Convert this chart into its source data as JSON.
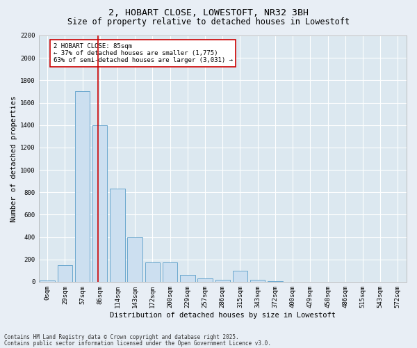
{
  "title_line1": "2, HOBART CLOSE, LOWESTOFT, NR32 3BH",
  "title_line2": "Size of property relative to detached houses in Lowestoft",
  "xlabel": "Distribution of detached houses by size in Lowestoft",
  "ylabel": "Number of detached properties",
  "bar_color": "#ccdff0",
  "bar_edge_color": "#5b9ec9",
  "categories": [
    "0sqm",
    "29sqm",
    "57sqm",
    "86sqm",
    "114sqm",
    "143sqm",
    "172sqm",
    "200sqm",
    "229sqm",
    "257sqm",
    "286sqm",
    "315sqm",
    "343sqm",
    "372sqm",
    "400sqm",
    "429sqm",
    "458sqm",
    "486sqm",
    "515sqm",
    "543sqm",
    "572sqm"
  ],
  "values": [
    10,
    150,
    1700,
    1400,
    830,
    400,
    175,
    170,
    60,
    30,
    15,
    100,
    15,
    5,
    0,
    0,
    0,
    0,
    0,
    0,
    0
  ],
  "ylim": [
    0,
    2200
  ],
  "yticks": [
    0,
    200,
    400,
    600,
    800,
    1000,
    1200,
    1400,
    1600,
    1800,
    2000,
    2200
  ],
  "vline_color": "#cc0000",
  "annotation_text": "2 HOBART CLOSE: 85sqm\n← 37% of detached houses are smaller (1,775)\n63% of semi-detached houses are larger (3,031) →",
  "annotation_box_color": "#ffffff",
  "annotation_box_edge_color": "#cc0000",
  "footer_line1": "Contains HM Land Registry data © Crown copyright and database right 2025.",
  "footer_line2": "Contains public sector information licensed under the Open Government Licence v3.0.",
  "bg_color": "#e8eef5",
  "plot_bg_color": "#dce8f0",
  "grid_color": "#ffffff",
  "title_fontsize": 9.5,
  "subtitle_fontsize": 8.5,
  "label_fontsize": 7.5,
  "tick_fontsize": 6.5,
  "annot_fontsize": 6.5,
  "footer_fontsize": 5.5
}
